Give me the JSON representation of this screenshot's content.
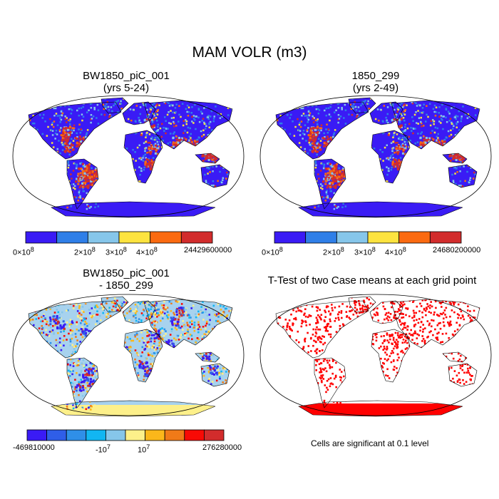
{
  "figure": {
    "title": "MAM VOLR (m3)",
    "panels": [
      {
        "id": "case",
        "title_line1": "BW1850_piC_001",
        "title_line2": "(yrs 5-24)",
        "colorbar": {
          "colors": [
            "#3a1bf5",
            "#2f7fe8",
            "#86c6ea",
            "#fde33f",
            "#fb6a10",
            "#d22c2c"
          ],
          "labels": {
            "zero": "0×10",
            "zero_exp": "8",
            "l2": "2×10",
            "l2_exp": "8",
            "l3": "3×10",
            "l3_exp": "8",
            "l4": "4×10",
            "l4_exp": "8",
            "max": "24429600000"
          }
        }
      },
      {
        "id": "control",
        "title_line1": "1850_299",
        "title_line2": "(yrs 2-49)",
        "colorbar": {
          "colors": [
            "#3a1bf5",
            "#2f7fe8",
            "#86c6ea",
            "#fde33f",
            "#fb6a10",
            "#d22c2c"
          ],
          "labels": {
            "zero": "0×10",
            "zero_exp": "8",
            "l2": "2×10",
            "l2_exp": "8",
            "l3": "3×10",
            "l3_exp": "8",
            "l4": "4×10",
            "l4_exp": "8",
            "max": "24680200000"
          }
        }
      },
      {
        "id": "difference",
        "title_line1": "BW1850_piC_001",
        "title_line2": "- 1850_299",
        "colorbar": {
          "colors": [
            "#3a1bf5",
            "#2f5ee8",
            "#2f8fe8",
            "#12b6f2",
            "#86c6ea",
            "#fdf08a",
            "#fbb71a",
            "#f07a18",
            "#f80a05",
            "#d22c2c"
          ],
          "labels": {
            "min": "-469810000",
            "neg": "-10",
            "neg_exp": "7",
            "pos": "10",
            "pos_exp": "7",
            "max": "276280000"
          }
        }
      },
      {
        "id": "ttest",
        "title": "T-Test of two Case means at each grid point",
        "note": "Cells are significant at 0.1 level"
      }
    ]
  },
  "colors": {
    "ocean": "#ffffff",
    "outline": "#000000",
    "case_land": "#3a1bf5",
    "diff_land": "#a7d2ee",
    "signif": "#ff0000"
  }
}
